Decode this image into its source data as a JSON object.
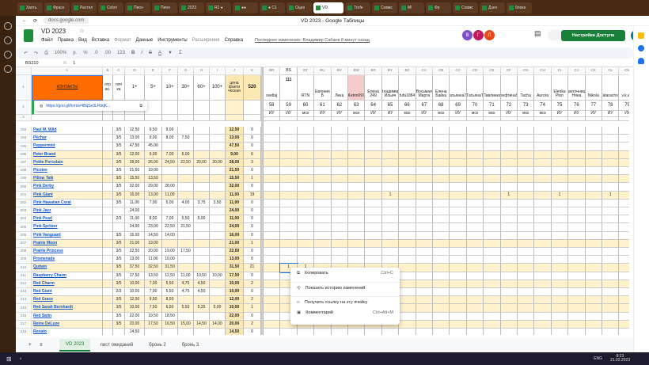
{
  "browser": {
    "tabs": [
      "Хвоть",
      "Фраск",
      "Растел",
      "Colori",
      "Пион",
      "Пион",
      "2023",
      "R2 ●",
      "●●",
      "● С1",
      "Оцен",
      "VD",
      "Trofe",
      "Совмс",
      "М!",
      "Фр",
      "Совмс",
      "Дзен",
      "блокн"
    ],
    "address": "docs.google.com",
    "window_title": "VD 2023 - Google Таблицы"
  },
  "doc": {
    "title": "VD 2023",
    "menu": [
      "Файл",
      "Правка",
      "Вид",
      "Вставка",
      "Формат",
      "Данные",
      "Инструменты",
      "Расширения",
      "Справка"
    ],
    "last_edit": "Последнее изменение: Владимир Сабаев 8 минут назад",
    "share_label": "Настройки Доступа",
    "avatars": [
      "В",
      "Г",
      "Л"
    ],
    "user_initial": "E"
  },
  "toolbar": {
    "zoom": "100%",
    "items": [
      "р.",
      "%",
      ".0",
      ".00",
      "123",
      "B",
      "I",
      "S",
      "A"
    ]
  },
  "formula_bar": {
    "cell_ref": "BS210",
    "fx": "fx",
    "value": "1"
  },
  "columns_left": [
    "A",
    "B",
    "C",
    "D",
    "E",
    "F",
    "G",
    "H",
    "I",
    "J",
    "K"
  ],
  "header_row": {
    "contacts": "КОНТАКТЫ",
    "b": "отр ан.",
    "c": "поч ка",
    "d": "1+",
    "e": "5+",
    "f": "10+",
    "g": "30+",
    "h": "60+",
    "i": "100+",
    "j": "цена факти ческая",
    "k": "520"
  },
  "link_popup": "https://goo.gl/forms/4BqSe3LRtiqK...",
  "columns_right": [
    "BR",
    "BS",
    "BT",
    "BU",
    "BV",
    "BW",
    "BX",
    "BY",
    "BZ",
    "CA",
    "CB",
    "CC",
    "CD",
    "CE",
    "CF",
    "CG",
    "CH",
    "CI",
    "CJ",
    "CK",
    "CL",
    "CM"
  ],
  "buyers": [
    "svetlaj",
    "111",
    "RTN",
    "Евгения Б",
    "Лека",
    "Ketrin097",
    "Елена 249",
    "Владимир Ильич",
    "fufa1084",
    "Восьмая Марта",
    "Елена Байка",
    "Татьянка78",
    "ТатьянаТ",
    "Павлинка",
    "Алефтина52",
    "Tacha",
    "Aurora",
    "Elenka Pion",
    "Цветочница Няна",
    "Nikola",
    "Tatarachok",
    "v.k.ets"
  ],
  "buyer_numbers": [
    "58",
    "59",
    "60",
    "61",
    "62",
    "63",
    "64",
    "65",
    "66",
    "67",
    "68",
    "69",
    "70",
    "71",
    "72",
    "73",
    "74",
    "75",
    "76",
    "77",
    "78",
    "79"
  ],
  "buyer_types": [
    "ИУ",
    "ИУ",
    "мск",
    "ИУ",
    "ИУ",
    "мск",
    "ИУ",
    "ИУ",
    "мск",
    "ИУ",
    "мск",
    "ИУ",
    "мск",
    "мск",
    "ИУ",
    "мск",
    "мск",
    "ИУ",
    "ИУ",
    "ИУ",
    "ИУ",
    "ИУ"
  ],
  "rows": [
    {
      "n": "193",
      "name": "Paul M. Wild",
      "b": "",
      "c": "3/5",
      "p": [
        "12,50",
        "9,50",
        "9,00",
        "",
        "",
        "",
        ""
      ],
      "j": "12,50",
      "k": "0",
      "hl": false,
      "orders": {}
    },
    {
      "n": "194",
      "name": "Pêchar",
      "b": "",
      "c": "3/5",
      "p": [
        "13,00",
        "9,00",
        "8,00",
        "7,50",
        "",
        "",
        ""
      ],
      "j": "13,00",
      "k": "0",
      "hl": false,
      "orders": {}
    },
    {
      "n": "195",
      "name": "Peppermint",
      "b": "",
      "c": "3/5",
      "p": [
        "47,50",
        "45,00",
        "",
        "",
        "",
        "",
        ""
      ],
      "j": "47,50",
      "k": "0",
      "hl": false,
      "orders": {}
    },
    {
      "n": "196",
      "name": "Peter Brand",
      "b": "",
      "c": "3/5",
      "p": [
        "12,00",
        "9,00",
        "7,00",
        "6,00",
        "",
        "",
        ""
      ],
      "j": "9,00",
      "k": "6",
      "hl": true,
      "orders": {}
    },
    {
      "n": "197",
      "name": "Petite Porcelain",
      "b": "",
      "c": "3/5",
      "p": [
        "28,00",
        "26,00",
        "24,50",
        "22,50",
        "20,00",
        "20,00",
        ""
      ],
      "j": "28,00",
      "k": "3",
      "hl": true,
      "orders": {}
    },
    {
      "n": "198",
      "name": "Picotee",
      "b": "",
      "c": "3/5",
      "p": [
        "21,50",
        "19,00",
        "",
        "",
        "",
        "",
        ""
      ],
      "j": "21,50",
      "k": "0",
      "hl": false,
      "orders": {}
    },
    {
      "n": "199",
      "name": "Pillow Talk",
      "b": "",
      "c": "3/5",
      "p": [
        "15,50",
        "13,50",
        "",
        "",
        "",
        "",
        ""
      ],
      "j": "15,50",
      "k": "1",
      "hl": true,
      "orders": {}
    },
    {
      "n": "200",
      "name": "Pink Derby",
      "b": "",
      "c": "3/5",
      "p": [
        "32,00",
        "29,00",
        "28,00",
        "",
        "",
        "",
        ""
      ],
      "j": "32,00",
      "k": "0",
      "hl": false,
      "orders": {}
    },
    {
      "n": "201",
      "name": "Pink Giant",
      "b": "",
      "c": "3/5",
      "p": [
        "16,00",
        "13,00",
        "11,00",
        "",
        "",
        "",
        ""
      ],
      "j": "11,00",
      "k": "19",
      "hl": true,
      "orders": {
        "7": "1",
        "14": "1",
        "17": "1",
        "20": "1"
      }
    },
    {
      "n": "202",
      "name": "Pink Hawaiian Coral",
      "b": "",
      "c": "3/5",
      "p": [
        "11,00",
        "7,00",
        "5,00",
        "4,00",
        "3,75",
        "3,50",
        ""
      ],
      "j": "11,00",
      "k": "0",
      "hl": false,
      "orders": {}
    },
    {
      "n": "203",
      "name": "Pink Jazz",
      "b": "",
      "c": "",
      "p": [
        "24,00",
        "",
        "",
        "",
        "",
        "",
        ""
      ],
      "j": "24,00",
      "k": "0",
      "hl": false,
      "orders": {}
    },
    {
      "n": "204",
      "name": "Pink Pearl",
      "b": "",
      "c": "2/3",
      "p": [
        "11,00",
        "8,00",
        "7,00",
        "5,50",
        "5,00",
        "",
        ""
      ],
      "j": "11,00",
      "k": "0",
      "hl": false,
      "orders": {}
    },
    {
      "n": "205",
      "name": "Pink Spritzer",
      "b": "",
      "c": "",
      "p": [
        "24,00",
        "23,00",
        "22,50",
        "21,50",
        "",
        "",
        ""
      ],
      "j": "24,00",
      "k": "0",
      "hl": false,
      "orders": {}
    },
    {
      "n": "206",
      "name": "Pink Vanguard",
      "b": "",
      "c": "3/5",
      "p": [
        "16,00",
        "14,50",
        "14,00",
        "",
        "",
        "",
        ""
      ],
      "j": "16,00",
      "k": "0",
      "hl": false,
      "orders": {}
    },
    {
      "n": "207",
      "name": "Prairie Moon",
      "b": "",
      "c": "3/5",
      "p": [
        "21,00",
        "19,00",
        "",
        "",
        "",
        "",
        ""
      ],
      "j": "21,00",
      "k": "1",
      "hl": true,
      "orders": {}
    },
    {
      "n": "208",
      "name": "Prairie Princess",
      "b": "",
      "c": "3/5",
      "p": [
        "22,50",
        "20,00",
        "19,00",
        "17,50",
        "",
        "",
        ""
      ],
      "j": "22,50",
      "k": "0",
      "hl": false,
      "orders": {}
    },
    {
      "n": "209",
      "name": "Promenade",
      "b": "",
      "c": "3/5",
      "p": [
        "13,00",
        "11,00",
        "10,00",
        "",
        "",
        "",
        ""
      ],
      "j": "13,00",
      "k": "0",
      "hl": false,
      "orders": {}
    },
    {
      "n": "210",
      "name": "Quitain",
      "b": "",
      "c": "3/5",
      "p": [
        "37,50",
        "32,50",
        "31,50",
        "",
        "",
        "",
        ""
      ],
      "j": "31,50",
      "k": "21",
      "hl": true,
      "orders": {
        "1": "1",
        "2": "1"
      }
    },
    {
      "n": "211",
      "name": "Raspberry Charm",
      "b": "",
      "c": "3/5",
      "p": [
        "17,50",
        "13,50",
        "12,50",
        "11,00",
        "10,50",
        "10,00",
        ""
      ],
      "j": "17,50",
      "k": "0",
      "hl": false,
      "orders": {}
    },
    {
      "n": "212",
      "name": "Red Charm",
      "b": "",
      "c": "3/5",
      "p": [
        "10,00",
        "7,00",
        "5,50",
        "4,75",
        "4,50",
        "",
        ""
      ],
      "j": "10,00",
      "k": "2",
      "hl": true,
      "orders": {}
    },
    {
      "n": "213",
      "name": "Red Giant",
      "b": "",
      "c": "2/3",
      "p": [
        "10,00",
        "7,00",
        "5,50",
        "4,75",
        "4,50",
        "",
        ""
      ],
      "j": "10,00",
      "k": "0",
      "hl": false,
      "orders": {}
    },
    {
      "n": "214",
      "name": "Red Grace",
      "b": "",
      "c": "3/5",
      "p": [
        "12,00",
        "9,50",
        "8,50",
        "",
        "",
        "",
        ""
      ],
      "j": "12,00",
      "k": "2",
      "hl": true,
      "orders": {}
    },
    {
      "n": "215",
      "name": "Red Sarah Bernhardt",
      "b": "",
      "c": "3/5",
      "p": [
        "10,00",
        "7,50",
        "6,50",
        "5,50",
        "5,25",
        "5,00",
        ""
      ],
      "j": "10,00",
      "k": "1",
      "hl": true,
      "orders": {}
    },
    {
      "n": "216",
      "name": "Red Satin",
      "b": "",
      "c": "3/5",
      "p": [
        "22,00",
        "19,50",
        "18,50",
        "",
        "",
        "",
        ""
      ],
      "j": "22,00",
      "k": "0",
      "hl": false,
      "orders": {}
    },
    {
      "n": "217",
      "name": "Reine DeLuxe",
      "b": "",
      "c": "3/5",
      "p": [
        "20,00",
        "17,50",
        "16,50",
        "15,00",
        "14,50",
        "14,00",
        ""
      ],
      "j": "20,00",
      "k": "2",
      "hl": true,
      "orders": {}
    },
    {
      "n": "218",
      "name": "Renato",
      "b": "",
      "c": "",
      "p": [
        "14,50",
        "",
        "",
        "",
        "",
        "",
        ""
      ],
      "j": "14,50",
      "k": "0",
      "hl": false,
      "orders": {}
    }
  ],
  "context_menu": [
    {
      "label": "Копировать",
      "shortcut": "Ctrl+C"
    },
    {
      "label": "Показать историю изменений",
      "shortcut": ""
    },
    {
      "label": "Получить ссылку на эту ячейку",
      "shortcut": ""
    },
    {
      "label": "Комментарий",
      "shortcut": "Ctrl+Alt+M"
    }
  ],
  "sheet_tabs": [
    "VD 2023",
    "лист ожиданий",
    "бронь 2",
    "бронь 3"
  ],
  "taskbar": {
    "lang": "ENG",
    "time": "8:23",
    "date": "21.02.2023"
  },
  "colors": {
    "accent": "#188038",
    "contacts_header": "#ff6d01",
    "highlight_row": "#fff2cc",
    "price_col": "#fce8b2",
    "selected_header": "#f4cccc"
  }
}
